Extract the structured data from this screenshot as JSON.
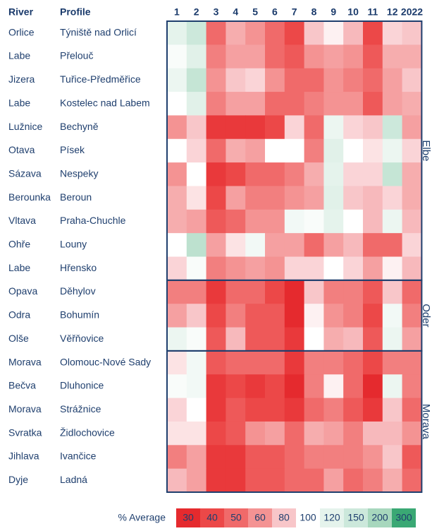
{
  "chart_data": {
    "type": "heatmap",
    "row_header": "River",
    "profile_header": "Profile",
    "columns": [
      "1",
      "2",
      "3",
      "4",
      "5",
      "6",
      "7",
      "8",
      "9",
      "10",
      "11",
      "12",
      "2022"
    ],
    "rows": [
      {
        "river": "Orlice",
        "profile": "Týniště nad Orlicí",
        "basin": "Elbe"
      },
      {
        "river": "Labe",
        "profile": "Přelouč",
        "basin": "Elbe"
      },
      {
        "river": "Jizera",
        "profile": "Tuřice-Předměřice",
        "basin": "Elbe"
      },
      {
        "river": "Labe",
        "profile": "Kostelec nad Labem",
        "basin": "Elbe"
      },
      {
        "river": "Lužnice",
        "profile": "Bechyně",
        "basin": "Elbe"
      },
      {
        "river": "Otava",
        "profile": "Písek",
        "basin": "Elbe"
      },
      {
        "river": "Sázava",
        "profile": "Nespeky",
        "basin": "Elbe"
      },
      {
        "river": "Berounka",
        "profile": "Beroun",
        "basin": "Elbe"
      },
      {
        "river": "Vltava",
        "profile": "Praha-Chuchle",
        "basin": "Elbe"
      },
      {
        "river": "Ohře",
        "profile": "Louny",
        "basin": "Elbe"
      },
      {
        "river": "Labe",
        "profile": "Hřensko",
        "basin": "Elbe"
      },
      {
        "river": "Opava",
        "profile": "Děhylov",
        "basin": "Oder"
      },
      {
        "river": "Odra",
        "profile": "Bohumín",
        "basin": "Oder"
      },
      {
        "river": "Olše",
        "profile": "Věřňovice",
        "basin": "Oder"
      },
      {
        "river": "Morava",
        "profile": "Olomouc-Nové Sady",
        "basin": "Morava"
      },
      {
        "river": "Bečva",
        "profile": "Dluhonice",
        "basin": "Morava"
      },
      {
        "river": "Morava",
        "profile": "Strážnice",
        "basin": "Morava"
      },
      {
        "river": "Svratka",
        "profile": "Židlochovice",
        "basin": "Morava"
      },
      {
        "river": "Jihlava",
        "profile": "Ivančice",
        "basin": "Morava"
      },
      {
        "river": "Dyje",
        "profile": "Ladná",
        "basin": "Morava"
      }
    ],
    "values": [
      [
        120,
        150,
        50,
        70,
        60,
        50,
        40,
        80,
        95,
        75,
        40,
        85,
        80
      ],
      [
        105,
        125,
        55,
        65,
        65,
        50,
        45,
        60,
        65,
        60,
        45,
        70,
        70
      ],
      [
        115,
        160,
        60,
        80,
        85,
        60,
        50,
        50,
        60,
        55,
        50,
        65,
        80
      ],
      [
        100,
        125,
        55,
        65,
        65,
        50,
        50,
        55,
        60,
        60,
        45,
        65,
        70
      ],
      [
        60,
        80,
        35,
        35,
        35,
        40,
        85,
        50,
        115,
        85,
        80,
        150,
        65
      ],
      [
        100,
        85,
        50,
        70,
        65,
        100,
        100,
        55,
        125,
        100,
        90,
        115,
        85
      ],
      [
        60,
        100,
        35,
        40,
        50,
        50,
        55,
        70,
        120,
        85,
        85,
        160,
        70
      ],
      [
        70,
        90,
        40,
        65,
        55,
        55,
        60,
        65,
        125,
        80,
        75,
        85,
        70
      ],
      [
        70,
        65,
        45,
        50,
        60,
        60,
        110,
        105,
        120,
        100,
        75,
        115,
        75
      ],
      [
        100,
        170,
        65,
        90,
        110,
        65,
        65,
        50,
        65,
        75,
        50,
        50,
        85
      ],
      [
        85,
        105,
        55,
        60,
        65,
        60,
        85,
        85,
        100,
        85,
        65,
        95,
        75
      ],
      [
        55,
        55,
        35,
        50,
        50,
        40,
        30,
        80,
        55,
        55,
        45,
        80,
        50
      ],
      [
        65,
        80,
        40,
        55,
        45,
        45,
        30,
        95,
        60,
        55,
        40,
        110,
        55
      ],
      [
        115,
        105,
        45,
        75,
        45,
        45,
        35,
        100,
        70,
        75,
        45,
        115,
        65
      ],
      [
        90,
        110,
        45,
        50,
        50,
        50,
        35,
        55,
        55,
        50,
        40,
        55,
        55
      ],
      [
        105,
        110,
        35,
        40,
        35,
        40,
        30,
        55,
        95,
        50,
        30,
        115,
        55
      ],
      [
        85,
        100,
        35,
        45,
        40,
        40,
        35,
        50,
        55,
        45,
        35,
        80,
        50
      ],
      [
        90,
        90,
        40,
        45,
        60,
        65,
        50,
        70,
        65,
        55,
        75,
        75,
        60
      ],
      [
        55,
        65,
        35,
        35,
        45,
        45,
        50,
        55,
        55,
        55,
        60,
        80,
        45
      ],
      [
        75,
        65,
        35,
        35,
        45,
        45,
        50,
        50,
        65,
        50,
        55,
        70,
        50
      ]
    ],
    "scale": {
      "title": "% Average",
      "values": [
        30,
        40,
        50,
        60,
        80,
        100,
        120,
        150,
        200,
        300
      ],
      "colors": [
        "#e52a2e",
        "#ec4848",
        "#f06a6a",
        "#f49393",
        "#f8c6c9",
        "#ffffff",
        "#e5f3ec",
        "#cce8db",
        "#a7d7bd",
        "#3aa874"
      ]
    }
  }
}
